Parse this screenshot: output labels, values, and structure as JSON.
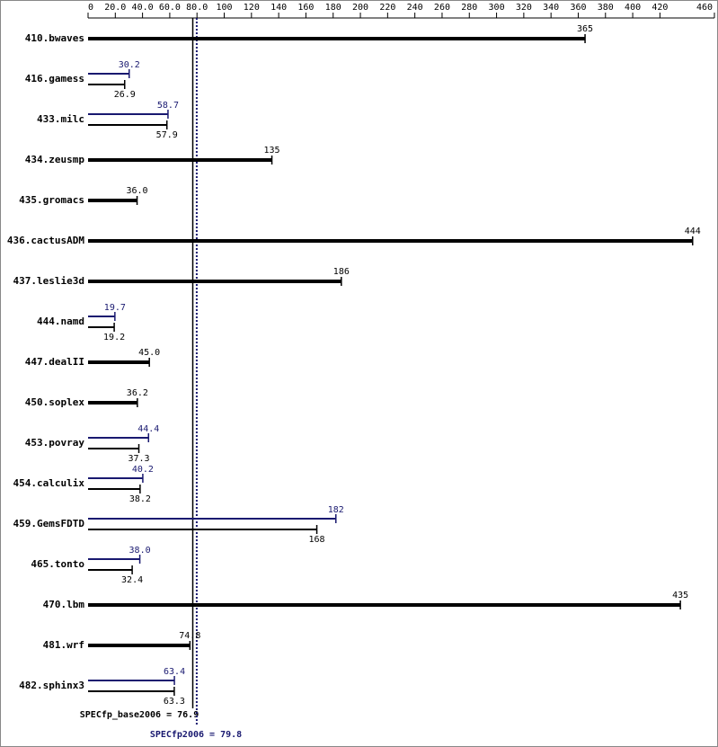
{
  "chart_data": {
    "type": "bar",
    "orientation": "horizontal",
    "categories": [
      "410.bwaves",
      "416.gamess",
      "433.milc",
      "434.zeusmp",
      "435.gromacs",
      "436.cactusADM",
      "437.leslie3d",
      "444.namd",
      "447.dealII",
      "450.soplex",
      "453.povray",
      "454.calculix",
      "459.GemsFDTD",
      "465.tonto",
      "470.lbm",
      "481.wrf",
      "482.sphinx3"
    ],
    "series": [
      {
        "color": "#000000",
        "values": [
          365,
          26.9,
          57.9,
          135,
          36.0,
          444,
          186,
          19.2,
          45.0,
          36.2,
          37.3,
          38.2,
          168,
          32.4,
          435,
          74.8,
          63.3
        ],
        "value_labels": [
          "365",
          "26.9",
          "57.9",
          "135",
          "36.0",
          "444",
          "186",
          "19.2",
          "45.0",
          "36.2",
          "37.3",
          "38.2",
          "168",
          "32.4",
          "435",
          "74.8",
          "63.3"
        ]
      },
      {
        "color": "#191970",
        "values": [
          null,
          30.2,
          58.7,
          null,
          null,
          null,
          null,
          19.7,
          null,
          null,
          44.4,
          40.2,
          182,
          38.0,
          null,
          null,
          63.4
        ],
        "value_labels": [
          null,
          "30.2",
          "58.7",
          null,
          null,
          null,
          null,
          "19.7",
          null,
          null,
          "44.4",
          "40.2",
          "182",
          "38.0",
          null,
          null,
          "63.4"
        ]
      }
    ],
    "xlim": [
      0,
      460
    ],
    "xticks": [
      0,
      {
        "value": 20,
        "label": "20.0"
      },
      {
        "value": 40,
        "label": "40.0"
      },
      {
        "value": 60,
        "label": "60.0"
      },
      {
        "value": 80,
        "label": "80.0"
      },
      100,
      120,
      140,
      160,
      180,
      200,
      220,
      240,
      260,
      280,
      300,
      320,
      340,
      360,
      380,
      400,
      420,
      460
    ],
    "reference_lines": [
      {
        "label": "SPECfp_base2006 = 76.9",
        "value": 76.9,
        "color": "#000000",
        "dashed": false
      },
      {
        "label": "SPECfp2006 = 79.8",
        "value": 79.8,
        "color": "#191970",
        "dashed": true
      }
    ]
  }
}
